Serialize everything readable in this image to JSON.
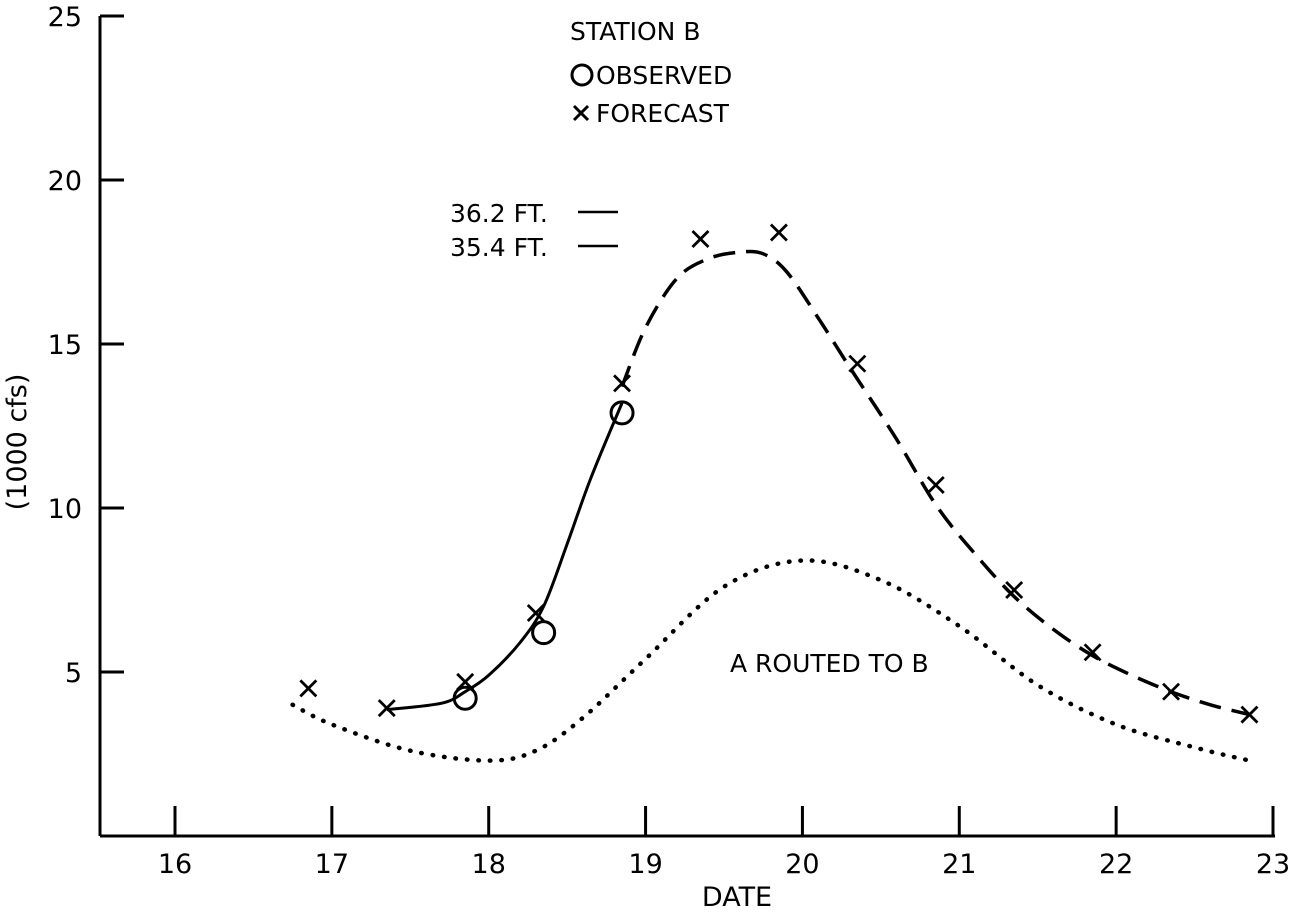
{
  "chart_data": {
    "type": "line",
    "title": "STATION B",
    "xlabel": "DATE",
    "ylabel": "(1000 cfs)",
    "xlim": [
      15.5,
      23.2
    ],
    "ylim": [
      0,
      25
    ],
    "x_ticks": [
      16,
      17,
      18,
      19,
      20,
      21,
      22,
      23
    ],
    "y_ticks": [
      5,
      10,
      15,
      20,
      25
    ],
    "grid": false,
    "legend_position": "top-center",
    "legend": [
      {
        "marker": "circle",
        "label": "OBSERVED"
      },
      {
        "marker": "x",
        "label": "FORECAST"
      }
    ],
    "series": [
      {
        "name": "OBSERVED",
        "marker": "circle",
        "line_style": "solid",
        "x": [
          17.85,
          18.35,
          18.85
        ],
        "y": [
          4.2,
          6.2,
          12.9
        ]
      },
      {
        "name": "FORECAST",
        "marker": "x",
        "line_style": "dashed",
        "x": [
          16.85,
          17.35,
          17.85,
          18.3,
          18.85,
          19.35,
          19.85,
          20.35,
          20.85,
          21.35,
          21.85,
          22.35,
          22.85
        ],
        "y": [
          4.5,
          3.9,
          4.7,
          6.8,
          13.8,
          18.2,
          18.4,
          14.4,
          10.7,
          7.5,
          5.6,
          4.4,
          3.7
        ]
      },
      {
        "name": "A ROUTED TO B",
        "marker": "none",
        "line_style": "dotted",
        "x": [
          16.75,
          17.0,
          17.5,
          18.0,
          18.3,
          18.6,
          19.0,
          19.5,
          20.0,
          20.5,
          21.0,
          21.5,
          22.0,
          22.5,
          22.85
        ],
        "y": [
          4.0,
          3.4,
          2.6,
          2.3,
          2.6,
          3.6,
          5.4,
          7.6,
          8.4,
          7.8,
          6.4,
          4.6,
          3.4,
          2.7,
          2.3
        ]
      }
    ],
    "curves": {
      "solid_fit": {
        "x": [
          17.35,
          17.7,
          17.85,
          18.0,
          18.2,
          18.35,
          18.5,
          18.65,
          18.85
        ],
        "y": [
          3.85,
          4.05,
          4.4,
          4.9,
          5.9,
          7.0,
          8.9,
          10.9,
          13.2
        ]
      },
      "dashed_fit": {
        "x": [
          18.85,
          19.0,
          19.2,
          19.4,
          19.6,
          19.75,
          19.9,
          20.1,
          20.3,
          20.6,
          20.85,
          21.1,
          21.35,
          21.6,
          21.85,
          22.1,
          22.35,
          22.6,
          22.85
        ],
        "y": [
          13.7,
          15.5,
          17.0,
          17.6,
          17.8,
          17.75,
          17.2,
          15.8,
          14.3,
          12.1,
          10.1,
          8.6,
          7.3,
          6.3,
          5.5,
          4.9,
          4.4,
          4.0,
          3.7
        ]
      }
    },
    "annotations": [
      {
        "text": "36.2 FT.",
        "y": 19.0,
        "x": 18.7
      },
      {
        "text": "35.4 FT.",
        "y": 18.0,
        "x": 18.7
      },
      {
        "text": "A ROUTED TO B",
        "x": 20.5,
        "y": 4.8
      }
    ]
  }
}
